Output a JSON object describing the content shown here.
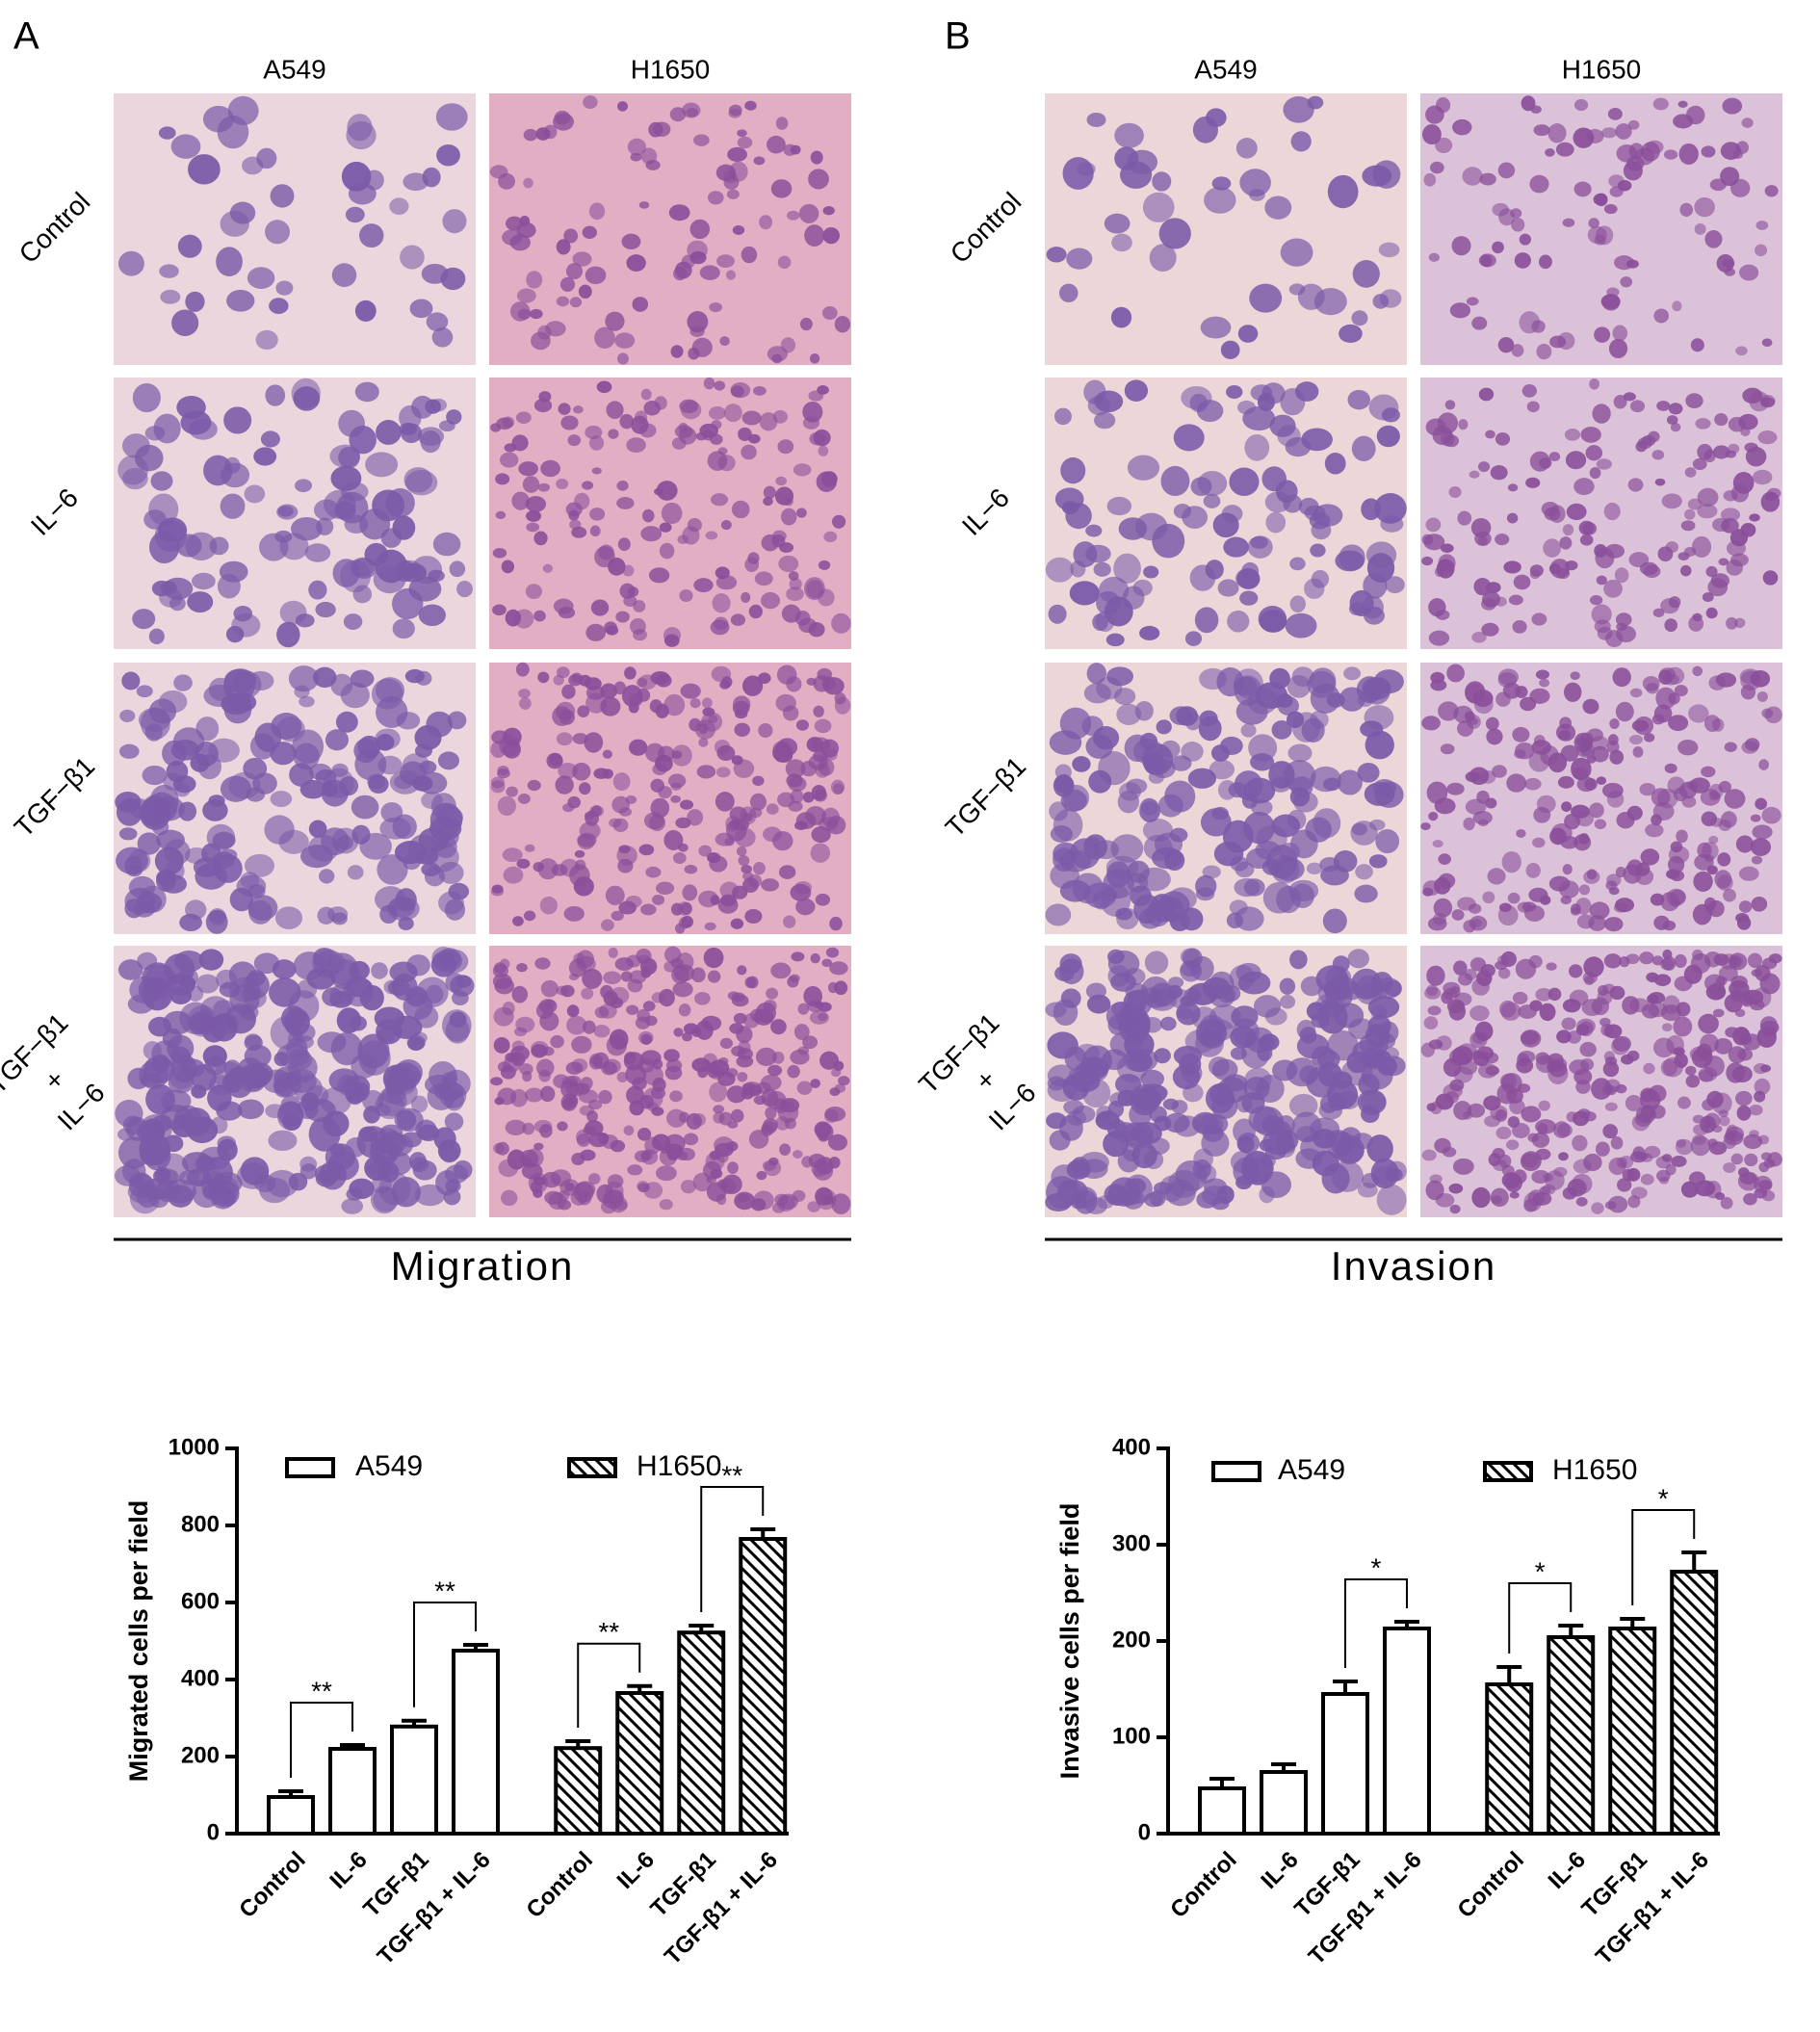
{
  "panels": [
    {
      "label": "A",
      "columns": [
        "A549",
        "H1650"
      ],
      "rows": [
        [
          "Control"
        ],
        [
          "IL−6"
        ],
        [
          "TGF−β1"
        ],
        [
          "TGF−β1",
          "+",
          "IL−6"
        ]
      ],
      "caption": "Migration"
    },
    {
      "label": "B",
      "columns": [
        "A549",
        "H1650"
      ],
      "rows": [
        [
          "Control"
        ],
        [
          "IL−6"
        ],
        [
          "TGF−β1"
        ],
        [
          "TGF−β1",
          "+",
          "IL−6"
        ]
      ],
      "caption": "Invasion"
    }
  ],
  "chart_data": [
    {
      "type": "bar",
      "ylabel": "Migrated cells per field",
      "categories": [
        "Control",
        "IL-6",
        "TGF-β1",
        "TGF-β1 + IL-6"
      ],
      "series": [
        {
          "name": "A549",
          "color": "#000000",
          "pattern": "solid",
          "values": [
            95,
            220,
            278,
            475
          ],
          "errors": [
            15,
            10,
            15,
            15
          ]
        },
        {
          "name": "H1650",
          "color": "#000000",
          "pattern": "hatch",
          "values": [
            222,
            365,
            522,
            765
          ],
          "errors": [
            18,
            18,
            18,
            25
          ]
        }
      ],
      "ylim": [
        0,
        1000
      ],
      "yticks": [
        0,
        200,
        400,
        600,
        800,
        1000
      ],
      "legend": "top",
      "annotations": [
        {
          "text": "**",
          "series": 0,
          "from": 0,
          "to": 1
        },
        {
          "text": "**",
          "series": 0,
          "from": 2,
          "to": 3
        },
        {
          "text": "**",
          "series": 1,
          "from": 0,
          "to": 1
        },
        {
          "text": "**",
          "series": 1,
          "from": 2,
          "to": 3
        }
      ]
    },
    {
      "type": "bar",
      "ylabel": "Invasive cells per field",
      "categories": [
        "Control",
        "IL-6",
        "TGF-β1",
        "TGF-β1 + IL-6"
      ],
      "series": [
        {
          "name": "A549",
          "color": "#000000",
          "pattern": "solid",
          "values": [
            47,
            64,
            145,
            213
          ],
          "errors": [
            10,
            8,
            13,
            7
          ]
        },
        {
          "name": "H1650",
          "color": "#000000",
          "pattern": "hatch",
          "values": [
            155,
            204,
            213,
            272
          ],
          "errors": [
            18,
            12,
            10,
            20
          ]
        }
      ],
      "ylim": [
        0,
        400
      ],
      "yticks": [
        0,
        100,
        200,
        300,
        400
      ],
      "legend": "top",
      "annotations": [
        {
          "text": "*",
          "series": 0,
          "from": 2,
          "to": 3
        },
        {
          "text": "*",
          "series": 1,
          "from": 0,
          "to": 1
        },
        {
          "text": "*",
          "series": 1,
          "from": 2,
          "to": 3
        }
      ]
    }
  ]
}
